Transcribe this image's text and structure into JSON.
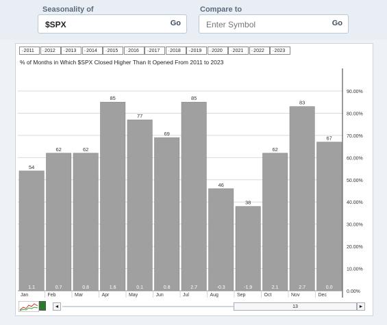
{
  "header": {
    "seasonality_label": "Seasonality of",
    "seasonality_value": "$SPX",
    "seasonality_go": "Go",
    "compare_label": "Compare to",
    "compare_placeholder": "Enter Symbol",
    "compare_go": "Go"
  },
  "legend": [
    {
      "label": "2011",
      "color": "#555555"
    },
    {
      "label": "2012",
      "color": "#c050c0"
    },
    {
      "label": "2013",
      "color": "#40a040"
    },
    {
      "label": "2014",
      "color": "#333333"
    },
    {
      "label": "2015",
      "color": "#c03030"
    },
    {
      "label": "2016",
      "color": "#e08030"
    },
    {
      "label": "2017",
      "color": "#8040c0"
    },
    {
      "label": "2018",
      "color": "#30a0a0"
    },
    {
      "label": "2019",
      "color": "#222222"
    },
    {
      "label": "2020",
      "color": "#d040d0"
    },
    {
      "label": "2021",
      "color": "#60c060"
    },
    {
      "label": "2022",
      "color": "#404040"
    },
    {
      "label": "2023",
      "color": "#d03030"
    }
  ],
  "chart_data": {
    "type": "bar",
    "title": "% of Months in Which $SPX Closed Higher Than It Opened From 2011 to 2023",
    "categories": [
      "Jan",
      "Feb",
      "Mar",
      "Apr",
      "May",
      "Jun",
      "Jul",
      "Aug",
      "Sep",
      "Oct",
      "Nov",
      "Dec"
    ],
    "values": [
      54,
      62,
      62,
      85,
      77,
      69,
      85,
      46,
      38,
      62,
      83,
      67
    ],
    "avg_change_labels": [
      "1.1",
      "0.7",
      "0.8",
      "1.6",
      "0.1",
      "0.8",
      "2.7",
      "-0.3",
      "-1.9",
      "2.1",
      "2.7",
      "0.0"
    ],
    "ylim": [
      0,
      100
    ],
    "yticks": [
      "0.00%",
      "10.00%",
      "20.00%",
      "30.00%",
      "40.00%",
      "50.00%",
      "60.00%",
      "70.00%",
      "80.00%",
      "90.00%"
    ],
    "ytick_values": [
      0,
      10,
      20,
      30,
      40,
      50,
      60,
      70,
      80,
      90
    ],
    "bar_color": "#a0a0a0",
    "grid": true,
    "legend_position": "top"
  },
  "navigator": {
    "left_arrow": "◄",
    "right_arrow": "►",
    "thumb_label": "13"
  }
}
